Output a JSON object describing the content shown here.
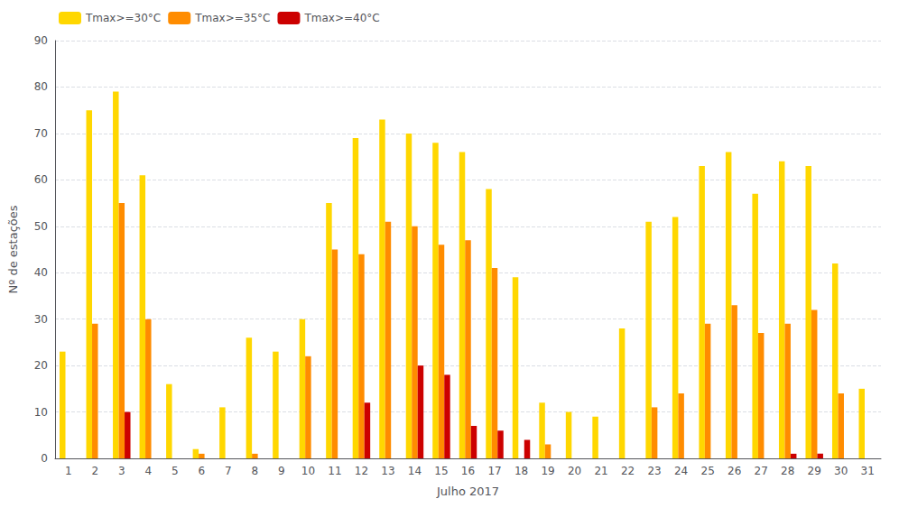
{
  "chart_data": {
    "type": "bar",
    "xlabel": "Julho 2017",
    "ylabel": "Nº de estações",
    "categories": [
      "1",
      "2",
      "3",
      "4",
      "5",
      "6",
      "7",
      "8",
      "9",
      "10",
      "11",
      "12",
      "13",
      "14",
      "15",
      "16",
      "17",
      "18",
      "19",
      "20",
      "21",
      "22",
      "23",
      "24",
      "25",
      "26",
      "27",
      "28",
      "29",
      "30",
      "31"
    ],
    "series": [
      {
        "name": "Tmax>=30°C",
        "color": "#FFD700",
        "values": [
          23,
          75,
          79,
          61,
          16,
          2,
          11,
          26,
          23,
          30,
          55,
          69,
          73,
          70,
          68,
          66,
          58,
          39,
          12,
          10,
          9,
          28,
          51,
          52,
          63,
          66,
          57,
          64,
          63,
          42,
          15
        ]
      },
      {
        "name": "Tmax>=35°C",
        "color": "#FF8C00",
        "values": [
          0,
          29,
          55,
          30,
          0,
          1,
          0,
          1,
          0,
          22,
          45,
          44,
          51,
          50,
          46,
          47,
          41,
          0,
          3,
          0,
          0,
          0,
          11,
          14,
          29,
          33,
          27,
          29,
          32,
          14,
          0
        ]
      },
      {
        "name": "Tmax>=40°C",
        "color": "#CC0000",
        "values": [
          0,
          0,
          10,
          0,
          0,
          0,
          0,
          0,
          0,
          0,
          0,
          12,
          0,
          20,
          18,
          7,
          6,
          4,
          0,
          0,
          0,
          0,
          0,
          0,
          0,
          0,
          0,
          1,
          1,
          0,
          0
        ]
      }
    ],
    "ylim": [
      0,
      90
    ],
    "yticks": [
      0,
      10,
      20,
      30,
      40,
      50,
      60,
      70,
      80,
      90
    ],
    "grid": true,
    "legend": "upper left"
  }
}
